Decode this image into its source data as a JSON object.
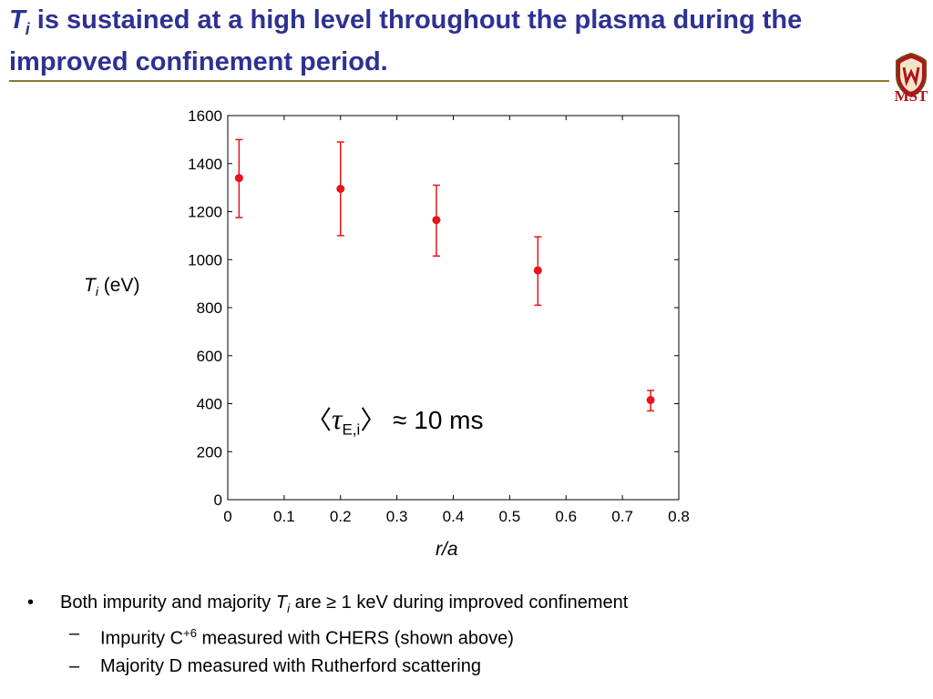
{
  "slide": {
    "title_symbol": "T",
    "title_symbol_sub": "i",
    "title_rest": " is sustained at a high level throughout the plasma during the improved confinement period.",
    "logo_text": "MST"
  },
  "annotation": {
    "open": "〈",
    "tau": "τ",
    "sub": "E,i",
    "close": "〉",
    "value": " ≈ 10 ms"
  },
  "bullets": {
    "main_marker": "•",
    "main_before": "Both impurity and majority ",
    "main_symbol": "T",
    "main_symbol_sub": "i",
    "main_after": " are ≥ 1 keV during improved confinement",
    "sub_marker": "–",
    "sub1_before": "Impurity C",
    "sub1_sup": "+6",
    "sub1_after": " measured with CHERS (shown above)",
    "sub2": "Majority D measured with Rutherford scattering"
  },
  "chart_data": {
    "type": "scatter",
    "xlabel": "r/a",
    "ylabel_symbol": "T",
    "ylabel_sub": "i",
    "ylabel_unit": " (eV)",
    "xlim": [
      0,
      0.8
    ],
    "ylim": [
      0,
      1600
    ],
    "xticks": [
      0,
      0.1,
      0.2,
      0.3,
      0.4,
      0.5,
      0.6,
      0.7,
      0.8
    ],
    "xtick_labels": [
      "0",
      "0.1",
      "0.2",
      "0.3",
      "0.4",
      "0.5",
      "0.6",
      "0.7",
      "0.8"
    ],
    "yticks": [
      0,
      200,
      400,
      600,
      800,
      1000,
      1200,
      1400,
      1600
    ],
    "ytick_labels": [
      "0",
      "200",
      "400",
      "600",
      "800",
      "1000",
      "1200",
      "1400",
      "1600"
    ],
    "grid": false,
    "marker_color": "#e8141b",
    "points": [
      {
        "x": 0.02,
        "y": 1340,
        "ylow": 1175,
        "yhigh": 1500
      },
      {
        "x": 0.2,
        "y": 1295,
        "ylow": 1100,
        "yhigh": 1490
      },
      {
        "x": 0.37,
        "y": 1165,
        "ylow": 1015,
        "yhigh": 1310
      },
      {
        "x": 0.55,
        "y": 955,
        "ylow": 810,
        "yhigh": 1095
      },
      {
        "x": 0.75,
        "y": 415,
        "ylow": 370,
        "yhigh": 455
      }
    ]
  }
}
